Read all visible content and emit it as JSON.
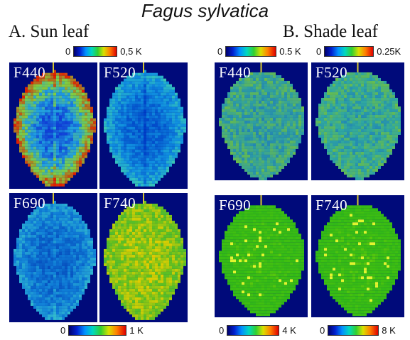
{
  "title": "Fagus sylvatica",
  "sections": [
    {
      "label": "A. Sun leaf"
    },
    {
      "label": "B. Shade leaf"
    }
  ],
  "scales": [
    {
      "min": "0",
      "max": "0,5 K"
    },
    {
      "min": "0",
      "max": "0.5 K"
    },
    {
      "min": "0",
      "max": "0.25K"
    },
    {
      "min": "0",
      "max": "1 K"
    },
    {
      "min": "0",
      "max": "4 K"
    },
    {
      "min": "0",
      "max": "8 K"
    }
  ],
  "panels": [
    {
      "label": "F440",
      "scheme": "sun-f440"
    },
    {
      "label": "F520",
      "scheme": "sun-f520"
    },
    {
      "label": "F690",
      "scheme": "sun-f690"
    },
    {
      "label": "F740",
      "scheme": "sun-f740"
    },
    {
      "label": "F440",
      "scheme": "shade-f440"
    },
    {
      "label": "F520",
      "scheme": "shade-f520"
    },
    {
      "label": "F690",
      "scheme": "shade-f690"
    },
    {
      "label": "F740",
      "scheme": "shade-f740"
    }
  ],
  "colors": {
    "background": "#000a7a",
    "leaf_vein_stem": "#d8c830"
  }
}
